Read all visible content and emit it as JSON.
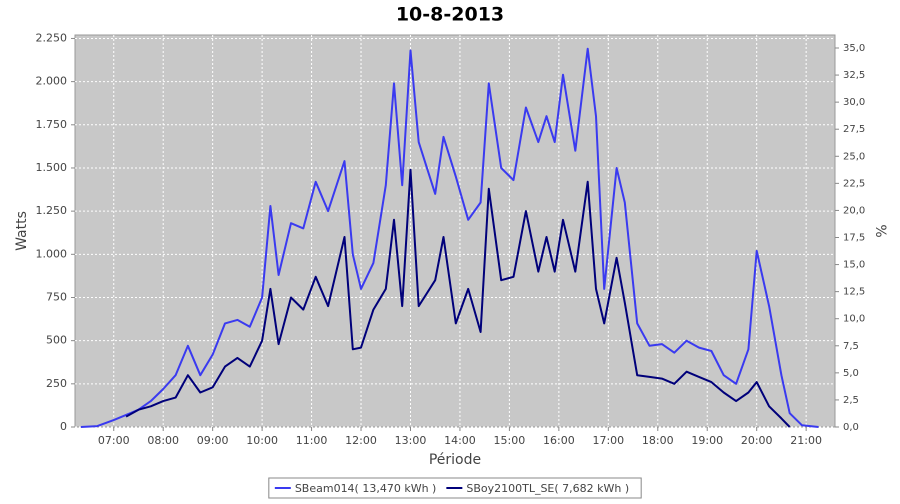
{
  "chart_data": {
    "type": "line",
    "title": "10-8-2013",
    "x_label": "Période",
    "y_label": "Watts",
    "y2_label": "%",
    "x": [
      "06:20",
      "06:40",
      "07:00",
      "07:15",
      "07:30",
      "07:45",
      "08:00",
      "08:15",
      "08:30",
      "08:45",
      "09:00",
      "09:15",
      "09:30",
      "09:45",
      "10:00",
      "10:10",
      "10:20",
      "10:35",
      "10:50",
      "11:05",
      "11:20",
      "11:40",
      "11:50",
      "12:00",
      "12:15",
      "12:30",
      "12:40",
      "12:50",
      "13:00",
      "13:10",
      "13:30",
      "13:40",
      "13:55",
      "14:10",
      "14:25",
      "14:35",
      "14:50",
      "15:05",
      "15:20",
      "15:35",
      "15:45",
      "15:55",
      "16:05",
      "16:20",
      "16:35",
      "16:45",
      "16:55",
      "17:10",
      "17:20",
      "17:35",
      "17:50",
      "18:05",
      "18:20",
      "18:35",
      "18:50",
      "19:05",
      "19:20",
      "19:35",
      "19:50",
      "20:00",
      "20:15",
      "20:30",
      "20:40",
      "20:55",
      "21:15"
    ],
    "series": [
      {
        "name": "SBeam014( 13,470 kWh )",
        "color": "#3a3af0",
        "values": [
          0,
          5,
          40,
          70,
          100,
          150,
          220,
          300,
          470,
          300,
          420,
          600,
          620,
          580,
          750,
          1280,
          880,
          1180,
          1150,
          1420,
          1250,
          1540,
          1000,
          800,
          950,
          1400,
          1990,
          1400,
          2180,
          1650,
          1350,
          1680,
          1450,
          1200,
          1300,
          1990,
          1500,
          1430,
          1850,
          1650,
          1800,
          1650,
          2040,
          1600,
          2190,
          1800,
          800,
          1500,
          1300,
          600,
          470,
          480,
          430,
          500,
          460,
          440,
          300,
          250,
          450,
          1020,
          700,
          300,
          80,
          10,
          0
        ]
      },
      {
        "name": "SBoy2100TL_SE( 7,682 kWh )",
        "color": "#00007a",
        "values": [
          null,
          null,
          null,
          60,
          100,
          120,
          150,
          170,
          300,
          200,
          230,
          350,
          400,
          350,
          500,
          800,
          480,
          750,
          680,
          870,
          700,
          1100,
          450,
          460,
          680,
          800,
          1200,
          700,
          1490,
          700,
          850,
          1100,
          600,
          800,
          550,
          1380,
          850,
          870,
          1250,
          900,
          1100,
          900,
          1200,
          900,
          1420,
          800,
          600,
          980,
          720,
          300,
          290,
          280,
          250,
          320,
          290,
          260,
          200,
          150,
          200,
          260,
          120,
          50,
          0,
          null,
          null
        ]
      }
    ],
    "xlim": [
      "06:13",
      "21:35"
    ],
    "xticks": [
      "07:00",
      "08:00",
      "09:00",
      "10:00",
      "11:00",
      "12:00",
      "13:00",
      "14:00",
      "15:00",
      "16:00",
      "17:00",
      "18:00",
      "19:00",
      "20:00",
      "21:00"
    ],
    "ylim": [
      0,
      2270
    ],
    "yticks": [
      0,
      250,
      500,
      750,
      {
        "value": 1000,
        "label": "1.000"
      },
      {
        "value": 1250,
        "label": "1.250"
      },
      {
        "value": 1500,
        "label": "1.500"
      },
      {
        "value": 1750,
        "label": "1.750"
      },
      {
        "value": 2000,
        "label": "2.000"
      },
      {
        "value": 2250,
        "label": "2.250"
      }
    ],
    "y2lim": [
      0,
      36.2
    ],
    "y2ticks": [
      {
        "value": 0,
        "label": "0,0"
      },
      {
        "value": 2.5,
        "label": "2,5"
      },
      {
        "value": 5,
        "label": "5,0"
      },
      {
        "value": 7.5,
        "label": "7,5"
      },
      {
        "value": 10,
        "label": "10,0"
      },
      {
        "value": 12.5,
        "label": "12,5"
      },
      {
        "value": 15,
        "label": "15,0"
      },
      {
        "value": 17.5,
        "label": "17,5"
      },
      {
        "value": 20,
        "label": "20,0"
      },
      {
        "value": 22.5,
        "label": "22,5"
      },
      {
        "value": 25,
        "label": "25,0"
      },
      {
        "value": 27.5,
        "label": "27,5"
      },
      {
        "value": 30,
        "label": "30,0"
      },
      {
        "value": 32.5,
        "label": "32,5"
      },
      {
        "value": 35,
        "label": "35,0"
      }
    ],
    "grid": true,
    "legend": "bottom"
  }
}
